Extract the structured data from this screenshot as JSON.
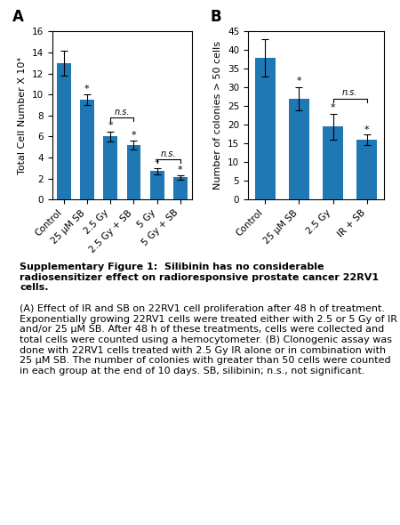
{
  "title": "Supplementary Figure 1:  Silibinin has no considerable radiosensitizer effect on radioresponsive prostate cancer 22RV1 cells.",
  "subtitle": "(A) Effect of IR and SB on 22RV1 cell proliferation after 48 h of treatment. Exponentially growing 22RV1 cells were treated either with 2.5 or 5 Gy of IR and/or 25 μM SB. After 48 h of these treatments, cells were collected and total cells were counted using a hemocytometer. (B) Clonogenic assay was done with 22RV1 cells treated with 2.5 Gy IR alone or in combination with 25 μM SB. The number of colonies with greater than 50 cells were counted in each group at the end of 10 days. SB, silibinin; n.s., not significant.",
  "chart_data": [
    {
      "type": "bar",
      "title": "A",
      "categories": [
        "Control",
        "25 μM SB",
        "2.5 Gy",
        "2.5 Gy + SB",
        "5 Gy",
        "5 Gy + SB"
      ],
      "values": [
        13.0,
        9.5,
        6.0,
        5.2,
        2.7,
        2.1
      ],
      "errors": [
        1.2,
        0.5,
        0.5,
        0.4,
        0.3,
        0.2
      ],
      "ylabel": "Total Cell Number X 10⁴",
      "ylim": [
        0,
        16
      ],
      "yticks": [
        0,
        2,
        4,
        6,
        8,
        10,
        12,
        14,
        16
      ],
      "annotations": [
        {
          "text": "n.s.",
          "from": "2.5 Gy",
          "to": "2.5 Gy + SB",
          "y": 7.8
        },
        {
          "text": "n.s.",
          "from": "5 Gy",
          "to": "5 Gy + SB",
          "y": 3.8
        },
        {
          "text": "*",
          "at": "25 μM SB",
          "y": 10.1
        },
        {
          "text": "*",
          "at": "2.5 Gy",
          "y": 6.6
        },
        {
          "text": "*",
          "at": "2.5 Gy + SB",
          "y": 5.7
        },
        {
          "text": "*",
          "at": "5 Gy",
          "y": 3.1
        },
        {
          "text": "*",
          "at": "5 Gy + SB",
          "y": 2.4
        }
      ]
    },
    {
      "type": "bar",
      "title": "B",
      "categories": [
        "Control",
        "25 μM SB",
        "2.5 Gy",
        "IR + SB"
      ],
      "values": [
        38.0,
        27.0,
        19.5,
        16.0
      ],
      "errors": [
        5.0,
        3.0,
        3.5,
        1.5
      ],
      "ylabel": "Number of colonies > 50 cells",
      "ylim": [
        0,
        45
      ],
      "yticks": [
        0,
        5,
        10,
        15,
        20,
        25,
        30,
        35,
        40,
        45
      ],
      "annotations": [
        {
          "text": "n.s.",
          "from": "2.5 Gy",
          "to": "IR + SB",
          "y": 27.0
        },
        {
          "text": "*",
          "at": "25 μM SB",
          "y": 30.5
        },
        {
          "text": "*",
          "at": "2.5 Gy",
          "y": 23.5
        },
        {
          "text": "*",
          "at": "IR + SB",
          "y": 17.5
        }
      ]
    }
  ]
}
